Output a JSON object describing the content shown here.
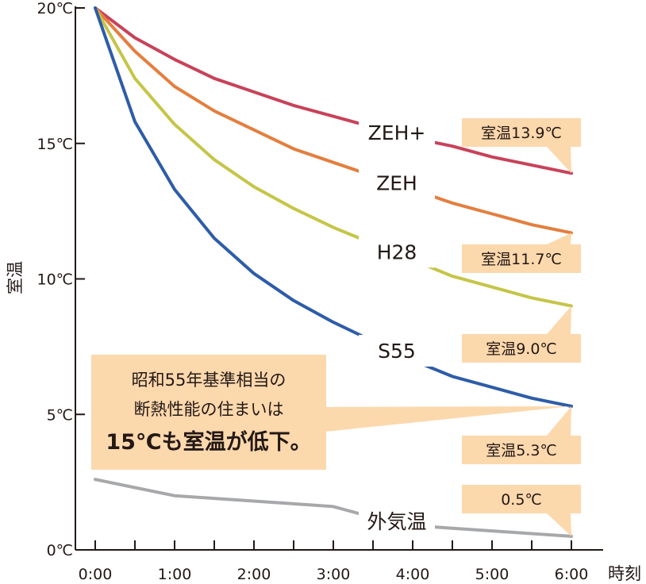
{
  "chart_data": {
    "type": "line",
    "ylabel": "室温",
    "xlabel": "時刻",
    "x": [
      "0:00",
      "0:30",
      "1:00",
      "1:30",
      "2:00",
      "2:30",
      "3:00",
      "3:30",
      "4:00",
      "4:30",
      "5:00",
      "5:30",
      "6:00"
    ],
    "xticks": [
      "0:00",
      "1:00",
      "2:00",
      "3:00",
      "4:00",
      "5:00",
      "6:00"
    ],
    "yticks": [
      "0℃",
      "5℃",
      "10℃",
      "15℃",
      "20℃"
    ],
    "ylim": [
      0,
      20
    ],
    "grid": false,
    "series": [
      {
        "name": "ZEH+",
        "color": "#c8425a",
        "values": [
          20.0,
          18.9,
          18.1,
          17.4,
          16.9,
          16.4,
          16.0,
          15.6,
          15.2,
          14.9,
          14.5,
          14.2,
          13.9
        ]
      },
      {
        "name": "ZEH",
        "color": "#e47e3e",
        "values": [
          20.0,
          18.4,
          17.1,
          16.2,
          15.5,
          14.8,
          14.3,
          13.8,
          13.3,
          12.8,
          12.4,
          12.0,
          11.7
        ]
      },
      {
        "name": "H28",
        "color": "#c5c548",
        "values": [
          20.0,
          17.4,
          15.7,
          14.4,
          13.4,
          12.6,
          11.9,
          11.3,
          10.7,
          10.1,
          9.7,
          9.3,
          9.0
        ]
      },
      {
        "name": "S55",
        "color": "#2e5ca8",
        "values": [
          20.0,
          15.8,
          13.3,
          11.5,
          10.2,
          9.2,
          8.4,
          7.7,
          7.0,
          6.4,
          6.0,
          5.6,
          5.3
        ]
      },
      {
        "name": "外気温",
        "color": "#a7a8aa",
        "values": [
          2.6,
          2.3,
          2.0,
          1.9,
          1.8,
          1.7,
          1.6,
          1.2,
          0.9,
          0.8,
          0.7,
          0.6,
          0.5
        ]
      }
    ],
    "end_labels": [
      {
        "series": "ZEH+",
        "text": "室温13.9℃"
      },
      {
        "series": "ZEH",
        "text": "室温11.7℃"
      },
      {
        "series": "H28",
        "text": "室温9.0℃"
      },
      {
        "series": "S55",
        "text": "室温5.3℃"
      },
      {
        "series": "外気温",
        "text": "0.5℃"
      }
    ],
    "annotation": {
      "line1": "昭和55年基準相当の",
      "line2": "断熱性能の住まいは",
      "line3": "15℃も室温が低下。",
      "target_series": "S55"
    },
    "callout_fill": "#fcd8ad",
    "axis_color": "#231815"
  }
}
